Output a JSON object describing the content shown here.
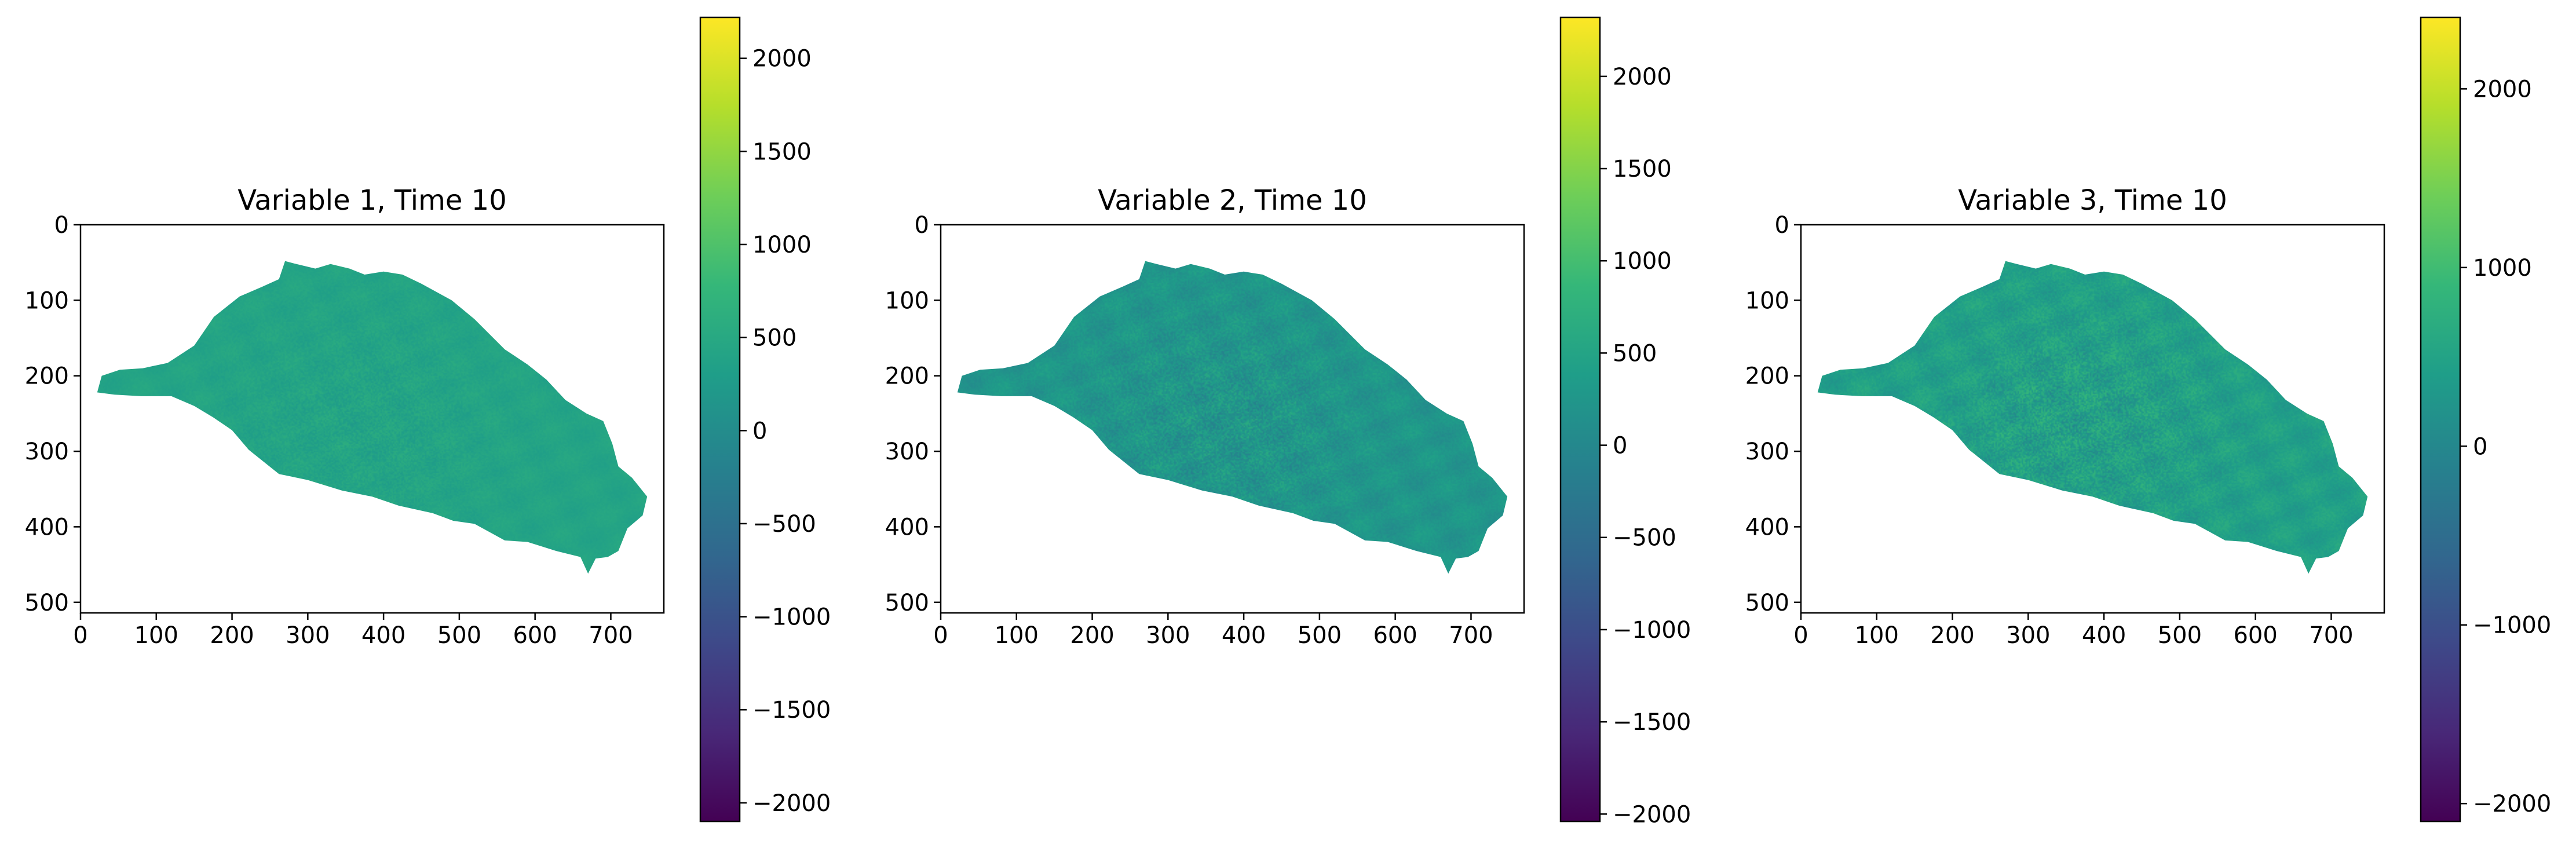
{
  "chart_data": [
    {
      "type": "heatmap",
      "title": "Variable 1, Time 10",
      "x_ticks": [
        0,
        100,
        200,
        300,
        400,
        500,
        600,
        700
      ],
      "y_ticks": [
        0,
        100,
        200,
        300,
        400,
        500
      ],
      "xlim": [
        0,
        770
      ],
      "ylim": [
        510,
        0
      ],
      "colormap": "viridis",
      "colorbar": {
        "ticks": [
          -2000,
          -1500,
          -1000,
          -500,
          0,
          500,
          1000,
          1500,
          2000
        ],
        "range": [
          -2100,
          2220
        ]
      },
      "field_mean": 420,
      "field_spread": 180
    },
    {
      "type": "heatmap",
      "title": "Variable 2, Time 10",
      "x_ticks": [
        0,
        100,
        200,
        300,
        400,
        500,
        600,
        700
      ],
      "y_ticks": [
        0,
        100,
        200,
        300,
        400,
        500
      ],
      "xlim": [
        0,
        770
      ],
      "ylim": [
        510,
        0
      ],
      "colormap": "viridis",
      "colorbar": {
        "ticks": [
          -2000,
          -1500,
          -1000,
          -500,
          0,
          500,
          1000,
          1500,
          2000
        ],
        "range": [
          -2040,
          2320
        ]
      },
      "field_mean": 250,
      "field_spread": 380
    },
    {
      "type": "heatmap",
      "title": "Variable 3, Time 10",
      "x_ticks": [
        0,
        100,
        200,
        300,
        400,
        500,
        600,
        700
      ],
      "y_ticks": [
        0,
        100,
        200,
        300,
        400,
        500
      ],
      "xlim": [
        0,
        770
      ],
      "ylim": [
        510,
        0
      ],
      "colormap": "viridis",
      "colorbar": {
        "ticks": [
          -2000,
          -1000,
          0,
          1000,
          2000
        ],
        "range": [
          -2100,
          2400
        ]
      },
      "field_mean": 450,
      "field_spread": 450
    }
  ],
  "colors": {
    "viridis": [
      "#440154",
      "#482878",
      "#3e4989",
      "#31688e",
      "#26828e",
      "#1f9e89",
      "#35b779",
      "#6ece58",
      "#b5de2b",
      "#fde725"
    ],
    "axis": "#000000",
    "background": "#ffffff"
  }
}
